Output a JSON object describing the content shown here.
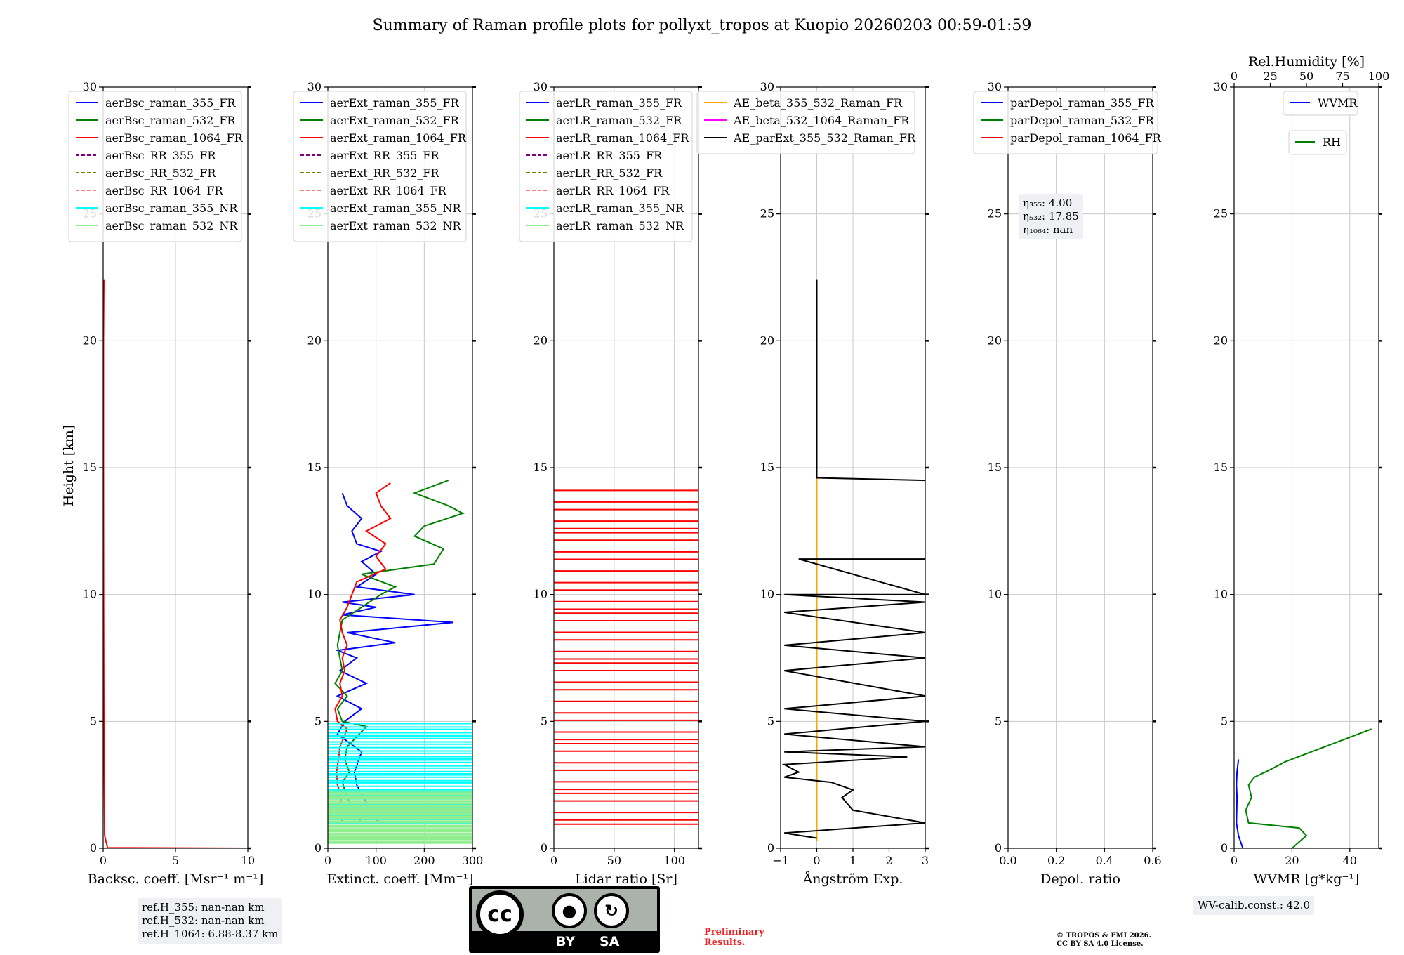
{
  "title": "Summary of Raman profile plots for pollyxt_tropos at Kuopio 20260203 00:59-01:59",
  "ylabel": "Height [km]",
  "y_ticks": [
    0,
    5,
    10,
    15,
    20,
    25,
    30
  ],
  "panels": [
    {
      "xlabel": "Backsc. coeff. [Msr⁻¹ m⁻¹]",
      "xlim": [
        0,
        10
      ],
      "x_ticks": [
        0,
        5,
        10
      ],
      "legend": [
        {
          "label": "aerBsc_raman_355_FR",
          "color": "#0000ff",
          "dash": false
        },
        {
          "label": "aerBsc_raman_532_FR",
          "color": "#008000",
          "dash": false
        },
        {
          "label": "aerBsc_raman_1064_FR",
          "color": "#ff0000",
          "dash": false
        },
        {
          "label": "aerBsc_RR_355_FR",
          "color": "#800080",
          "dash": true
        },
        {
          "label": "aerBsc_RR_532_FR",
          "color": "#808000",
          "dash": true
        },
        {
          "label": "aerBsc_RR_1064_FR",
          "color": "#fa8072",
          "dash": true
        },
        {
          "label": "aerBsc_raman_355_NR",
          "color": "#00ffff",
          "dash": false
        },
        {
          "label": "aerBsc_raman_532_NR",
          "color": "#90ee90",
          "dash": false
        }
      ]
    },
    {
      "xlabel": "Extinct. coeff. [Mm⁻¹]",
      "xlim": [
        0,
        300
      ],
      "x_ticks": [
        0,
        100,
        200,
        300
      ],
      "legend": [
        {
          "label": "aerExt_raman_355_FR",
          "color": "#0000ff",
          "dash": false
        },
        {
          "label": "aerExt_raman_532_FR",
          "color": "#008000",
          "dash": false
        },
        {
          "label": "aerExt_raman_1064_FR",
          "color": "#ff0000",
          "dash": false
        },
        {
          "label": "aerExt_RR_355_FR",
          "color": "#800080",
          "dash": true
        },
        {
          "label": "aerExt_RR_532_FR",
          "color": "#808000",
          "dash": true
        },
        {
          "label": "aerExt_RR_1064_FR",
          "color": "#fa8072",
          "dash": true
        },
        {
          "label": "aerExt_raman_355_NR",
          "color": "#00ffff",
          "dash": false
        },
        {
          "label": "aerExt_raman_532_NR",
          "color": "#90ee90",
          "dash": false
        }
      ]
    },
    {
      "xlabel": "Lidar ratio [Sr]",
      "xlim": [
        0,
        120
      ],
      "x_ticks": [
        0,
        50,
        100
      ],
      "legend": [
        {
          "label": "aerLR_raman_355_FR",
          "color": "#0000ff",
          "dash": false
        },
        {
          "label": "aerLR_raman_532_FR",
          "color": "#008000",
          "dash": false
        },
        {
          "label": "aerLR_raman_1064_FR",
          "color": "#ff0000",
          "dash": false
        },
        {
          "label": "aerLR_RR_355_FR",
          "color": "#800080",
          "dash": true
        },
        {
          "label": "aerLR_RR_532_FR",
          "color": "#808000",
          "dash": true
        },
        {
          "label": "aerLR_RR_1064_FR",
          "color": "#fa8072",
          "dash": true
        },
        {
          "label": "aerLR_raman_355_NR",
          "color": "#00ffff",
          "dash": false
        },
        {
          "label": "aerLR_raman_532_NR",
          "color": "#90ee90",
          "dash": false
        }
      ]
    },
    {
      "xlabel": "Ångström Exp.",
      "xlim": [
        -1,
        3
      ],
      "x_ticks": [
        -1,
        0,
        1,
        2,
        3
      ],
      "x_tick_labels": [
        "−1",
        "0",
        "1",
        "2",
        "3"
      ],
      "legend": [
        {
          "label": "AE_beta_355_532_Raman_FR",
          "color": "#ffa500",
          "dash": false
        },
        {
          "label": "AE_beta_532_1064_Raman_FR",
          "color": "#ff00ff",
          "dash": false
        },
        {
          "label": "AE_parExt_355_532_Raman_FR",
          "color": "#000000",
          "dash": false
        }
      ]
    },
    {
      "xlabel": "Depol. ratio",
      "xlim": [
        0,
        0.6
      ],
      "x_ticks": [
        0,
        0.2,
        0.4,
        0.6
      ],
      "x_tick_labels": [
        "0.0",
        "0.2",
        "0.4",
        "0.6"
      ],
      "legend": [
        {
          "label": "parDepol_raman_355_FR",
          "color": "#0000ff",
          "dash": false
        },
        {
          "label": "parDepol_raman_532_FR",
          "color": "#008000",
          "dash": false
        },
        {
          "label": "parDepol_raman_1064_FR",
          "color": "#ff0000",
          "dash": false
        }
      ]
    },
    {
      "xlabel": "WVMR [g*kg⁻¹]",
      "xlim": [
        0,
        50
      ],
      "x_ticks": [
        0,
        20,
        40
      ],
      "top_xlabel": "Rel.Humidity [%]",
      "top_xlim": [
        0,
        100
      ],
      "top_x_ticks": [
        0,
        25,
        50,
        75,
        100
      ],
      "legend_wvmr": {
        "label": "WVMR",
        "color": "#0000ff"
      },
      "legend_rh": {
        "label": "RH",
        "color": "#008000"
      }
    }
  ],
  "eta_box": {
    "line1": "η₃₅₅: 4.00",
    "line2": "η₅₃₂: 17.85",
    "line3": "η₁₀₆₄: nan"
  },
  "ref_box": {
    "line1": "ref.H_355: nan-nan km",
    "line2": "ref.H_532: nan-nan km",
    "line3": "ref.H_1064: 6.88-8.37 km"
  },
  "wv_box": "WV-calib.const.: 42.0",
  "cc_badge": {
    "cc": "cc",
    "by": "BY",
    "sa": "SA"
  },
  "preliminary": {
    "line1": "Preliminary",
    "line2": "Results."
  },
  "copyright": {
    "line1": "© TROPOS & FMI 2026.",
    "line2": "CC BY SA 4.0 License."
  },
  "chart_data": {
    "type": "line",
    "title": "Summary of Raman profile plots for pollyxt_tropos at Kuopio 20260203 00:59-01:59",
    "ylabel": "Height [km]",
    "ylim": [
      0,
      30
    ],
    "subplots": [
      {
        "xlabel": "Backsc. coeff. [Msr⁻¹ m⁻¹]",
        "xlim": [
          0,
          10
        ],
        "series": [
          {
            "name": "aerBsc_raman_1064_FR",
            "color": "#ff0000",
            "points": [
              [
                10,
                0.0
              ],
              [
                0.3,
                0.02
              ],
              [
                0.1,
                0.5
              ],
              [
                0.05,
                5
              ],
              [
                0.03,
                10
              ],
              [
                0.02,
                15
              ],
              [
                0.02,
                20
              ],
              [
                0.05,
                22.4
              ]
            ]
          }
        ]
      },
      {
        "xlabel": "Extinct. coeff. [Mm⁻¹]",
        "xlim": [
          0,
          300
        ],
        "series": [
          {
            "name": "aerExt_raman_355_FR",
            "color": "#0000ff",
            "points": [
              [
                110,
                1.0
              ],
              [
                90,
                1.3
              ],
              [
                80,
                1.8
              ],
              [
                60,
                2.5
              ],
              [
                55,
                3.0
              ],
              [
                70,
                3.8
              ],
              [
                20,
                4.5
              ],
              [
                35,
                5.0
              ],
              [
                70,
                5.5
              ],
              [
                20,
                6.0
              ],
              [
                80,
                6.5
              ],
              [
                25,
                7.0
              ],
              [
                60,
                7.5
              ],
              [
                20,
                7.8
              ],
              [
                140,
                8.1
              ],
              [
                40,
                8.5
              ],
              [
                260,
                8.9
              ],
              [
                30,
                9.2
              ],
              [
                100,
                9.5
              ],
              [
                30,
                9.7
              ],
              [
                180,
                10.0
              ],
              [
                60,
                10.3
              ],
              [
                100,
                10.8
              ],
              [
                70,
                11.3
              ],
              [
                110,
                11.7
              ],
              [
                60,
                12.0
              ],
              [
                50,
                12.5
              ],
              [
                70,
                13.0
              ],
              [
                40,
                13.5
              ],
              [
                30,
                14.0
              ]
            ]
          },
          {
            "name": "aerExt_raman_532_FR",
            "color": "#008000",
            "points": [
              [
                70,
                1.0
              ],
              [
                55,
                1.5
              ],
              [
                40,
                2.0
              ],
              [
                30,
                2.6
              ],
              [
                45,
                3.0
              ],
              [
                35,
                3.5
              ],
              [
                40,
                4.0
              ],
              [
                80,
                4.8
              ],
              [
                30,
                5.0
              ],
              [
                20,
                5.5
              ],
              [
                40,
                6.0
              ],
              [
                15,
                6.5
              ],
              [
                30,
                7.0
              ],
              [
                20,
                8.0
              ],
              [
                30,
                9.0
              ],
              [
                110,
                10.0
              ],
              [
                140,
                10.3
              ],
              [
                70,
                10.8
              ],
              [
                220,
                11.2
              ],
              [
                240,
                11.8
              ],
              [
                180,
                12.3
              ],
              [
                200,
                12.7
              ],
              [
                280,
                13.2
              ],
              [
                250,
                13.5
              ],
              [
                180,
                14.0
              ],
              [
                250,
                14.5
              ]
            ]
          },
          {
            "name": "aerExt_raman_1064_FR",
            "color": "#ff0000",
            "points": [
              [
                30,
                1.0
              ],
              [
                25,
                1.5
              ],
              [
                28,
                2.0
              ],
              [
                20,
                2.5
              ],
              [
                18,
                3.0
              ],
              [
                22,
                3.5
              ],
              [
                25,
                4.0
              ],
              [
                40,
                4.7
              ],
              [
                20,
                5.0
              ],
              [
                15,
                5.5
              ],
              [
                30,
                6.0
              ],
              [
                25,
                6.5
              ],
              [
                35,
                7.0
              ],
              [
                30,
                7.5
              ],
              [
                40,
                8.0
              ],
              [
                30,
                8.5
              ],
              [
                25,
                9.0
              ],
              [
                40,
                9.5
              ],
              [
                50,
                10.0
              ],
              [
                60,
                10.5
              ],
              [
                120,
                11.0
              ],
              [
                100,
                11.5
              ],
              [
                120,
                12.0
              ],
              [
                80,
                12.5
              ],
              [
                130,
                13.0
              ],
              [
                110,
                13.5
              ],
              [
                100,
                14.0
              ],
              [
                130,
                14.4
              ]
            ]
          },
          {
            "name": "aerExt_raman_355_NR",
            "color": "#00ffff",
            "range": [
              1.0,
              5.0
            ]
          },
          {
            "name": "aerExt_raman_532_NR",
            "color": "#90ee90",
            "range": [
              0.2,
              2.3
            ]
          }
        ]
      },
      {
        "xlabel": "Lidar ratio [Sr]",
        "xlim": [
          0,
          120
        ],
        "series": [
          {
            "name": "aerLR_raman_1064_FR",
            "color": "#ff0000",
            "range": [
              0.95,
              14.4
            ]
          }
        ]
      },
      {
        "xlabel": "Ångström Exp.",
        "xlim": [
          -1,
          3
        ],
        "series": [
          {
            "name": "AE_beta_355_532_Raman_FR",
            "color": "#ffa500",
            "points": [
              [
                0,
                0.3
              ],
              [
                0,
                14.6
              ]
            ]
          },
          {
            "name": "AE_parExt_355_532_Raman_FR",
            "color": "#000000",
            "points": [
              [
                0,
                22.4
              ],
              [
                0,
                14.6
              ],
              [
                3,
                14.5
              ],
              [
                3,
                11.4
              ],
              [
                -0.5,
                11.4
              ],
              [
                3,
                10.0
              ],
              [
                -0.9,
                10.0
              ],
              [
                3,
                9.7
              ],
              [
                -0.9,
                9.3
              ],
              [
                3,
                8.5
              ],
              [
                -0.9,
                8.0
              ],
              [
                3,
                7.5
              ],
              [
                -0.9,
                7.0
              ],
              [
                3,
                6.0
              ],
              [
                -0.9,
                5.5
              ],
              [
                3,
                5.0
              ],
              [
                -0.9,
                4.5
              ],
              [
                3,
                4.0
              ],
              [
                -0.9,
                3.8
              ],
              [
                2.5,
                3.6
              ],
              [
                -0.9,
                3.3
              ],
              [
                -0.5,
                3.0
              ],
              [
                -0.9,
                2.8
              ],
              [
                0.4,
                2.6
              ],
              [
                1.0,
                2.3
              ],
              [
                0.7,
                2.0
              ],
              [
                1.0,
                1.5
              ],
              [
                3,
                1.0
              ],
              [
                -0.9,
                0.6
              ],
              [
                0,
                0.4
              ]
            ]
          }
        ]
      },
      {
        "xlabel": "Depol. ratio",
        "xlim": [
          0,
          0.6
        ],
        "series": []
      },
      {
        "xlabel": "WVMR [g*kg⁻¹]",
        "xlim": [
          0,
          50
        ],
        "top_axis": {
          "label": "Rel.Humidity [%]",
          "lim": [
            0,
            100
          ]
        },
        "series": [
          {
            "name": "WVMR",
            "color": "#0000ff",
            "points": [
              [
                3,
                0.0
              ],
              [
                1.5,
                0.5
              ],
              [
                0.8,
                1.0
              ],
              [
                0.9,
                1.5
              ],
              [
                1.0,
                2.0
              ],
              [
                0.8,
                2.5
              ],
              [
                1.0,
                3.0
              ],
              [
                1.5,
                3.5
              ]
            ]
          },
          {
            "name": "RH",
            "color": "#008000",
            "axis": "top",
            "points": [
              [
                40,
                0.0
              ],
              [
                50,
                0.5
              ],
              [
                45,
                0.8
              ],
              [
                10,
                1.0
              ],
              [
                8,
                1.5
              ],
              [
                12,
                2.0
              ],
              [
                10,
                2.5
              ],
              [
                14,
                2.8
              ],
              [
                25,
                3.1
              ],
              [
                35,
                3.4
              ],
              [
                95,
                4.7
              ]
            ]
          }
        ]
      }
    ]
  }
}
